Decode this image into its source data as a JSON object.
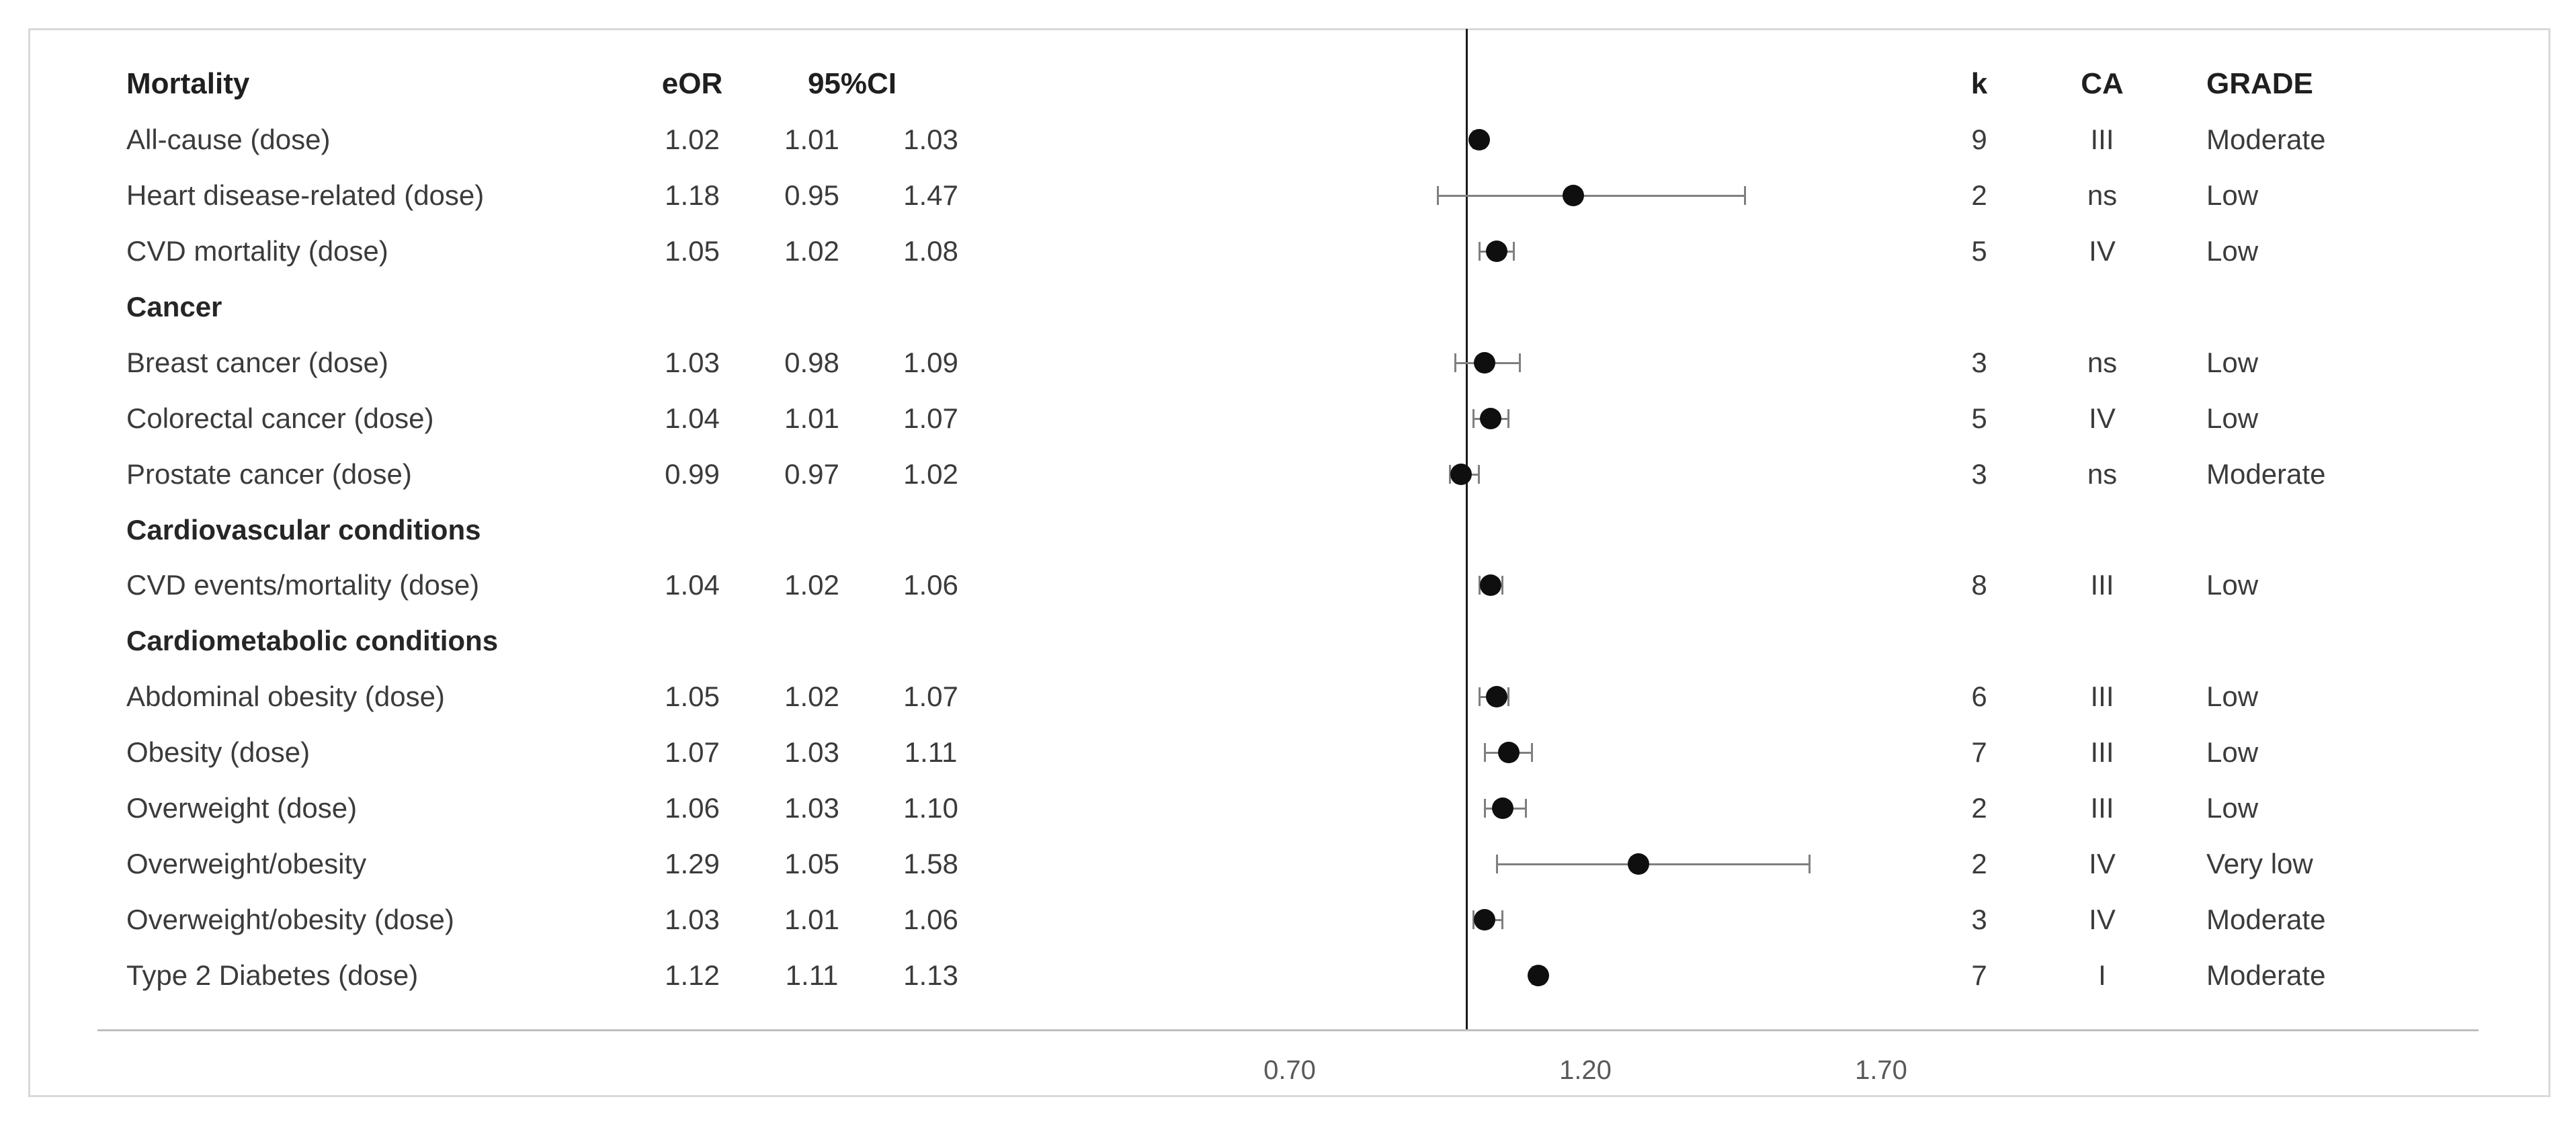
{
  "chart_data": {
    "type": "forest",
    "columns": {
      "group_header": "Mortality",
      "eor": "eOR",
      "ci": "95%CI",
      "k": "k",
      "ca": "CA",
      "grade": "GRADE"
    },
    "rows": [
      {
        "type": "group",
        "label": "Mortality"
      },
      {
        "type": "item",
        "label": "All-cause (dose)",
        "eor": "1.02",
        "lo": "1.01",
        "hi": "1.03",
        "k": "9",
        "ca": "III",
        "grade": "Moderate"
      },
      {
        "type": "item",
        "label": "Heart disease-related (dose)",
        "eor": "1.18",
        "lo": "0.95",
        "hi": "1.47",
        "k": "2",
        "ca": "ns",
        "grade": "Low"
      },
      {
        "type": "item",
        "label": "CVD mortality (dose)",
        "eor": "1.05",
        "lo": "1.02",
        "hi": "1.08",
        "k": "5",
        "ca": "IV",
        "grade": "Low"
      },
      {
        "type": "group",
        "label": "Cancer"
      },
      {
        "type": "item",
        "label": "Breast cancer (dose)",
        "eor": "1.03",
        "lo": "0.98",
        "hi": "1.09",
        "k": "3",
        "ca": "ns",
        "grade": "Low"
      },
      {
        "type": "item",
        "label": "Colorectal cancer (dose)",
        "eor": "1.04",
        "lo": "1.01",
        "hi": "1.07",
        "k": "5",
        "ca": "IV",
        "grade": "Low"
      },
      {
        "type": "item",
        "label": "Prostate cancer (dose)",
        "eor": "0.99",
        "lo": "0.97",
        "hi": "1.02",
        "k": "3",
        "ca": "ns",
        "grade": "Moderate"
      },
      {
        "type": "group",
        "label": "Cardiovascular conditions"
      },
      {
        "type": "item",
        "label": "CVD events/mortality (dose)",
        "eor": "1.04",
        "lo": "1.02",
        "hi": "1.06",
        "k": "8",
        "ca": "III",
        "grade": "Low"
      },
      {
        "type": "group",
        "label": "Cardiometabolic conditions"
      },
      {
        "type": "item",
        "label": "Abdominal obesity (dose)",
        "eor": "1.05",
        "lo": "1.02",
        "hi": "1.07",
        "k": "6",
        "ca": "III",
        "grade": "Low"
      },
      {
        "type": "item",
        "label": "Obesity  (dose)",
        "eor": "1.07",
        "lo": "1.03",
        "hi": "1.11",
        "k": "7",
        "ca": "III",
        "grade": "Low"
      },
      {
        "type": "item",
        "label": "Overweight (dose)",
        "eor": "1.06",
        "lo": "1.03",
        "hi": "1.10",
        "k": "2",
        "ca": "III",
        "grade": "Low"
      },
      {
        "type": "item",
        "label": "Overweight/obesity",
        "eor": "1.29",
        "lo": "1.05",
        "hi": "1.58",
        "k": "2",
        "ca": "IV",
        "grade": "Very low"
      },
      {
        "type": "item",
        "label": "Overweight/obesity (dose)",
        "eor": "1.03",
        "lo": "1.01",
        "hi": "1.06",
        "k": "3",
        "ca": "IV",
        "grade": "Moderate"
      },
      {
        "type": "item",
        "label": "Type 2 Diabetes (dose)",
        "eor": "1.12",
        "lo": "1.11",
        "hi": "1.13",
        "k": "7",
        "ca": "I",
        "grade": "Moderate"
      }
    ],
    "axis": {
      "ticks": [
        "0.70",
        "1.20",
        "1.70"
      ],
      "tick_values": [
        0.7,
        1.2,
        1.7
      ],
      "ref_value": 1.0,
      "grid": false,
      "xlim_note": "reference line at 1.00"
    }
  }
}
